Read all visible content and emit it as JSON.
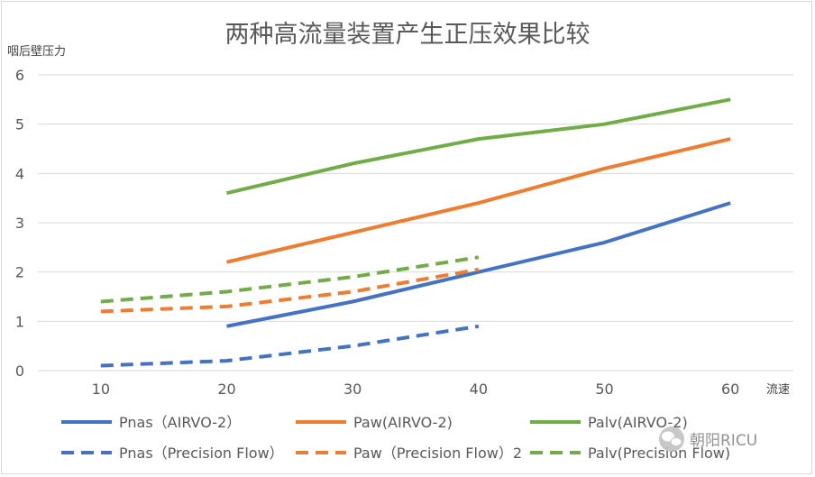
{
  "chart_data": {
    "type": "line",
    "title": "两种高流量装置产生正压效果比较",
    "xlabel": "流速",
    "ylabel": "咽后壁压力",
    "x": [
      10,
      20,
      30,
      40,
      50,
      60
    ],
    "xlim": [
      5,
      65
    ],
    "ylim": [
      0,
      6
    ],
    "yticks": [
      0,
      1,
      2,
      3,
      4,
      5,
      6
    ],
    "grid": true,
    "legend_position": "bottom",
    "series": [
      {
        "name": "Pnas（AIRVO-2）",
        "x": [
          20,
          30,
          40,
          50,
          60
        ],
        "values": [
          0.9,
          1.4,
          2.0,
          2.6,
          3.4
        ],
        "color": "#4472C4",
        "dash": false
      },
      {
        "name": "Paw(AIRVO-2)",
        "x": [
          20,
          30,
          40,
          50,
          60
        ],
        "values": [
          2.2,
          2.8,
          3.4,
          4.1,
          4.7
        ],
        "color": "#ED7D31",
        "dash": false
      },
      {
        "name": "Palv(AIRVO-2)",
        "x": [
          20,
          30,
          40,
          50,
          60
        ],
        "values": [
          3.6,
          4.2,
          4.7,
          5.0,
          5.5
        ],
        "color": "#70AD47",
        "dash": false
      },
      {
        "name": "Pnas（Precision Flow）",
        "x": [
          10,
          20,
          30,
          40
        ],
        "values": [
          0.1,
          0.2,
          0.5,
          0.9
        ],
        "color": "#4472C4",
        "dash": true
      },
      {
        "name": "Paw（Precision Flow）2",
        "x": [
          10,
          20,
          30,
          40
        ],
        "values": [
          1.2,
          1.3,
          1.6,
          2.05
        ],
        "color": "#ED7D31",
        "dash": true
      },
      {
        "name": "Palv(Precision Flow)",
        "x": [
          10,
          20,
          30,
          40
        ],
        "values": [
          1.4,
          1.6,
          1.9,
          2.3
        ],
        "color": "#70AD47",
        "dash": true
      }
    ]
  },
  "watermark": {
    "text": "朝阳RICU",
    "icon": "wechat-icon"
  }
}
